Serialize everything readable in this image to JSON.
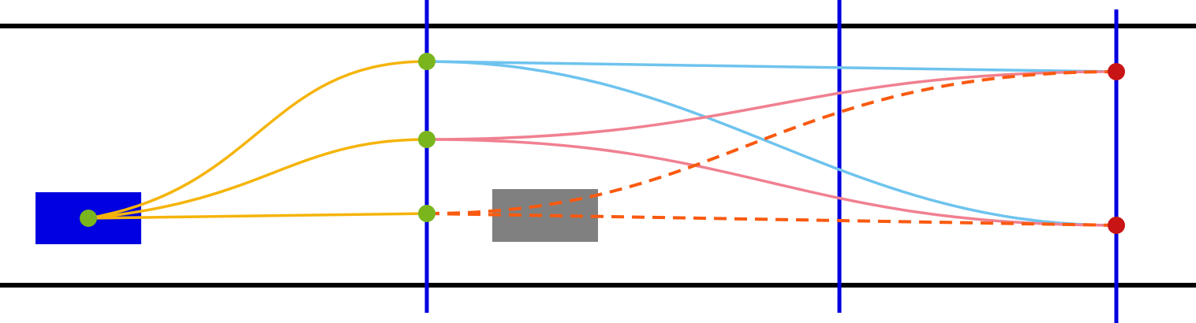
{
  "colors": {
    "background": "#ffffff",
    "boundary_line": "#000000",
    "divider_line": "#0000e0",
    "source_block": "#0000e0",
    "obstacle_block": "#808080",
    "source_to_gate_curve": "#f5b40a",
    "gate_top_to_right_curve": "#6ec3ee",
    "gate_middle_to_right_curve": "#f08090",
    "optimal_dashed_path": "#fa5a10",
    "gate_node": "#7ab51d",
    "target_node": "#c81414"
  },
  "nodes": {
    "source": "green-node",
    "gates": [
      "green-node",
      "green-node",
      "green-node"
    ],
    "targets": [
      "red-node",
      "red-node"
    ]
  }
}
